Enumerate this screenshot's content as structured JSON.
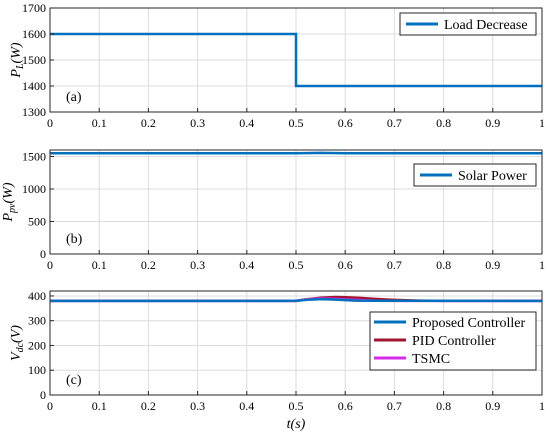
{
  "chart_data": [
    {
      "type": "line",
      "panel_label": "(a)",
      "ylabel_main": "P",
      "ylabel_sub": "L",
      "ylabel_tail": "(W)",
      "xlim": [
        0,
        1
      ],
      "ylim": [
        1300,
        1700
      ],
      "x_ticks": [
        "0",
        "0.1",
        "0.2",
        "0.3",
        "0.4",
        "0.5",
        "0.6",
        "0.7",
        "0.8",
        "0.9",
        "1"
      ],
      "y_ticks": [
        "1300",
        "1400",
        "1500",
        "1600",
        "1700"
      ],
      "grid": true,
      "legend_position": "top-right",
      "series": [
        {
          "name": "Load Decrease",
          "color": "#0072BD",
          "x": [
            0,
            0.5,
            0.5,
            1
          ],
          "y": [
            1600,
            1600,
            1400,
            1400
          ]
        }
      ]
    },
    {
      "type": "line",
      "panel_label": "(b)",
      "ylabel_main": "P",
      "ylabel_sub": "pv",
      "ylabel_tail": "(W)",
      "xlim": [
        0,
        1
      ],
      "ylim": [
        0,
        1600
      ],
      "x_ticks": [
        "0",
        "0.1",
        "0.2",
        "0.3",
        "0.4",
        "0.5",
        "0.6",
        "0.7",
        "0.8",
        "0.9",
        "1"
      ],
      "y_ticks": [
        "0",
        "500",
        "1000",
        "1500"
      ],
      "grid": true,
      "legend_position": "top-right",
      "series": [
        {
          "name": "Solar Power",
          "color": "#0072BD",
          "x": [
            0,
            0.5,
            0.52,
            0.55,
            0.6,
            1
          ],
          "y": [
            1550,
            1550,
            1552,
            1556,
            1550,
            1550
          ]
        }
      ]
    },
    {
      "type": "line",
      "panel_label": "(c)",
      "ylabel_main": "V",
      "ylabel_sub": "dc",
      "ylabel_tail": "(V)",
      "xlabel": "t(s)",
      "xlim": [
        0,
        1
      ],
      "ylim": [
        0,
        420
      ],
      "x_ticks": [
        "0",
        "0.1",
        "0.2",
        "0.3",
        "0.4",
        "0.5",
        "0.6",
        "0.7",
        "0.8",
        "0.9",
        "1"
      ],
      "y_ticks": [
        "0",
        "100",
        "200",
        "300",
        "400"
      ],
      "grid": true,
      "legend_position": "right",
      "series": [
        {
          "name": "PID Controller",
          "color": "#A2142F",
          "x": [
            0,
            0.5,
            0.52,
            0.55,
            0.58,
            0.6,
            0.63,
            0.66,
            0.7,
            0.75,
            0.8,
            1
          ],
          "y": [
            380,
            380,
            386,
            393,
            396,
            395,
            392,
            388,
            384,
            381,
            380,
            380
          ]
        },
        {
          "name": "TSMC",
          "color": "#D62BEA",
          "x": [
            0,
            0.5,
            0.52,
            0.55,
            0.58,
            0.62,
            0.66,
            0.7,
            0.75,
            1
          ],
          "y": [
            380,
            380,
            386,
            390,
            388,
            384,
            381,
            380,
            380,
            380
          ]
        },
        {
          "name": "Proposed Controller",
          "color": "#0072BD",
          "x": [
            0,
            0.5,
            0.52,
            0.55,
            0.58,
            0.62,
            1
          ],
          "y": [
            380,
            380,
            384,
            387,
            385,
            381,
            380
          ]
        }
      ],
      "legend_order": [
        "Proposed Controller",
        "PID Controller",
        "TSMC"
      ]
    }
  ]
}
